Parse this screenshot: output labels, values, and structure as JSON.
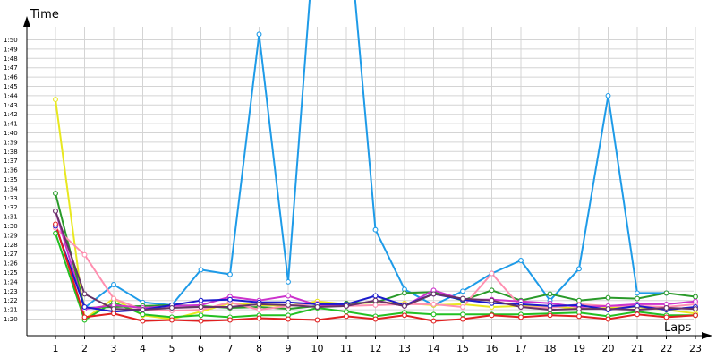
{
  "chart_data": {
    "type": "line",
    "xlabel": "Laps",
    "ylabel": "Time",
    "xlim": [
      1,
      23
    ],
    "ylim": [
      75.5,
      116
    ],
    "grid": true,
    "categories": [
      "1",
      "2",
      "3",
      "4",
      "5",
      "6",
      "7",
      "8",
      "9",
      "10",
      "11",
      "12",
      "13",
      "14",
      "15",
      "16",
      "17",
      "18",
      "19",
      "20",
      "21",
      "22",
      "23"
    ],
    "y_tick_values": [
      80,
      81,
      82,
      83,
      84,
      85,
      86,
      87,
      88,
      89,
      90,
      91,
      92,
      93,
      94,
      95,
      96,
      97,
      98,
      99,
      100,
      101,
      102,
      103,
      104,
      105,
      106,
      107,
      108,
      109,
      110
    ],
    "y_tick_labels": [
      "1:20",
      "1:21",
      "1:22",
      "1:23",
      "1:24",
      "1:25",
      "1:26",
      "1:27",
      "1:28",
      "1:29",
      "1:30",
      "1:31",
      "1:32",
      "1:33",
      "1:34",
      "1:35",
      "1:36",
      "1:37",
      "1:38",
      "1:39",
      "1:40",
      "1:41",
      "1:42",
      "1:43",
      "1:44",
      "1:45",
      "1:46",
      "1:47",
      "1:48",
      "1:49",
      "1:50"
    ],
    "series": [
      {
        "color": "#1e9be8",
        "values": [
          null,
          81.2,
          83.7,
          81.8,
          81.5,
          85.3,
          84.8,
          110.6,
          84.0,
          125.0,
          125.0,
          89.6,
          83.2,
          81.5,
          83.0,
          84.9,
          86.3,
          82.0,
          85.4,
          104.0,
          82.8,
          82.8,
          null
        ]
      },
      {
        "color": "#e8e820",
        "values": [
          103.6,
          80.0,
          82.2,
          80.4,
          80.0,
          80.8,
          81.7,
          81.5,
          81.4,
          81.9,
          81.6,
          81.8,
          81.7,
          81.5,
          81.6,
          81.3,
          81.4,
          81.4,
          81.1,
          81.2,
          81.3,
          81.0,
          80.6
        ]
      },
      {
        "color": "#2a9a2a",
        "values": [
          93.5,
          81.2,
          81.3,
          81.4,
          81.5,
          81.4,
          81.2,
          81.3,
          81.1,
          81.4,
          81.7,
          81.8,
          82.8,
          82.9,
          82.0,
          83.1,
          82.0,
          82.7,
          82.0,
          82.3,
          82.2,
          82.8,
          82.4
        ]
      },
      {
        "color": "#22c022",
        "values": [
          89.2,
          79.9,
          81.8,
          80.5,
          80.2,
          80.4,
          80.2,
          80.4,
          80.4,
          81.2,
          80.8,
          80.3,
          80.7,
          80.5,
          80.5,
          80.5,
          80.5,
          80.6,
          80.7,
          80.3,
          80.8,
          80.4,
          80.4
        ]
      },
      {
        "color": "#ff8fb0",
        "values": [
          89.8,
          86.9,
          82.2,
          81.0,
          80.9,
          81.0,
          81.8,
          81.0,
          81.4,
          81.7,
          81.4,
          81.5,
          81.6,
          81.6,
          81.3,
          84.9,
          81.3,
          81.2,
          81.6,
          81.4,
          81.4,
          81.3,
          81.6
        ]
      },
      {
        "color": "#cc33cc",
        "values": [
          91.6,
          81.1,
          81.5,
          81.2,
          81.4,
          81.5,
          82.4,
          82.0,
          82.5,
          81.5,
          81.4,
          82.0,
          81.4,
          83.1,
          82.1,
          82.1,
          81.9,
          81.7,
          81.3,
          81.4,
          81.6,
          81.6,
          81.9
        ]
      },
      {
        "color": "#1a1acc",
        "values": [
          90.0,
          81.3,
          80.8,
          81.0,
          81.5,
          82.0,
          82.1,
          81.8,
          81.8,
          81.6,
          81.6,
          82.5,
          81.5,
          82.7,
          82.1,
          81.7,
          81.6,
          81.4,
          81.5,
          81.0,
          81.4,
          81.0,
          81.3
        ]
      },
      {
        "color": "#663366",
        "values": [
          91.6,
          82.7,
          81.1,
          81.0,
          81.2,
          81.3,
          81.3,
          81.6,
          81.5,
          81.3,
          81.4,
          82.0,
          81.4,
          82.7,
          82.2,
          82.0,
          81.3,
          81.0,
          81.1,
          81.1,
          81.0,
          81.2,
          81.1
        ]
      },
      {
        "color": "#e02020",
        "values": [
          90.2,
          80.2,
          80.6,
          79.8,
          79.9,
          79.8,
          79.9,
          80.1,
          80.0,
          79.9,
          80.3,
          80.0,
          80.4,
          79.8,
          80.0,
          80.4,
          80.2,
          80.4,
          80.3,
          80.0,
          80.5,
          80.2,
          80.4
        ]
      }
    ]
  }
}
